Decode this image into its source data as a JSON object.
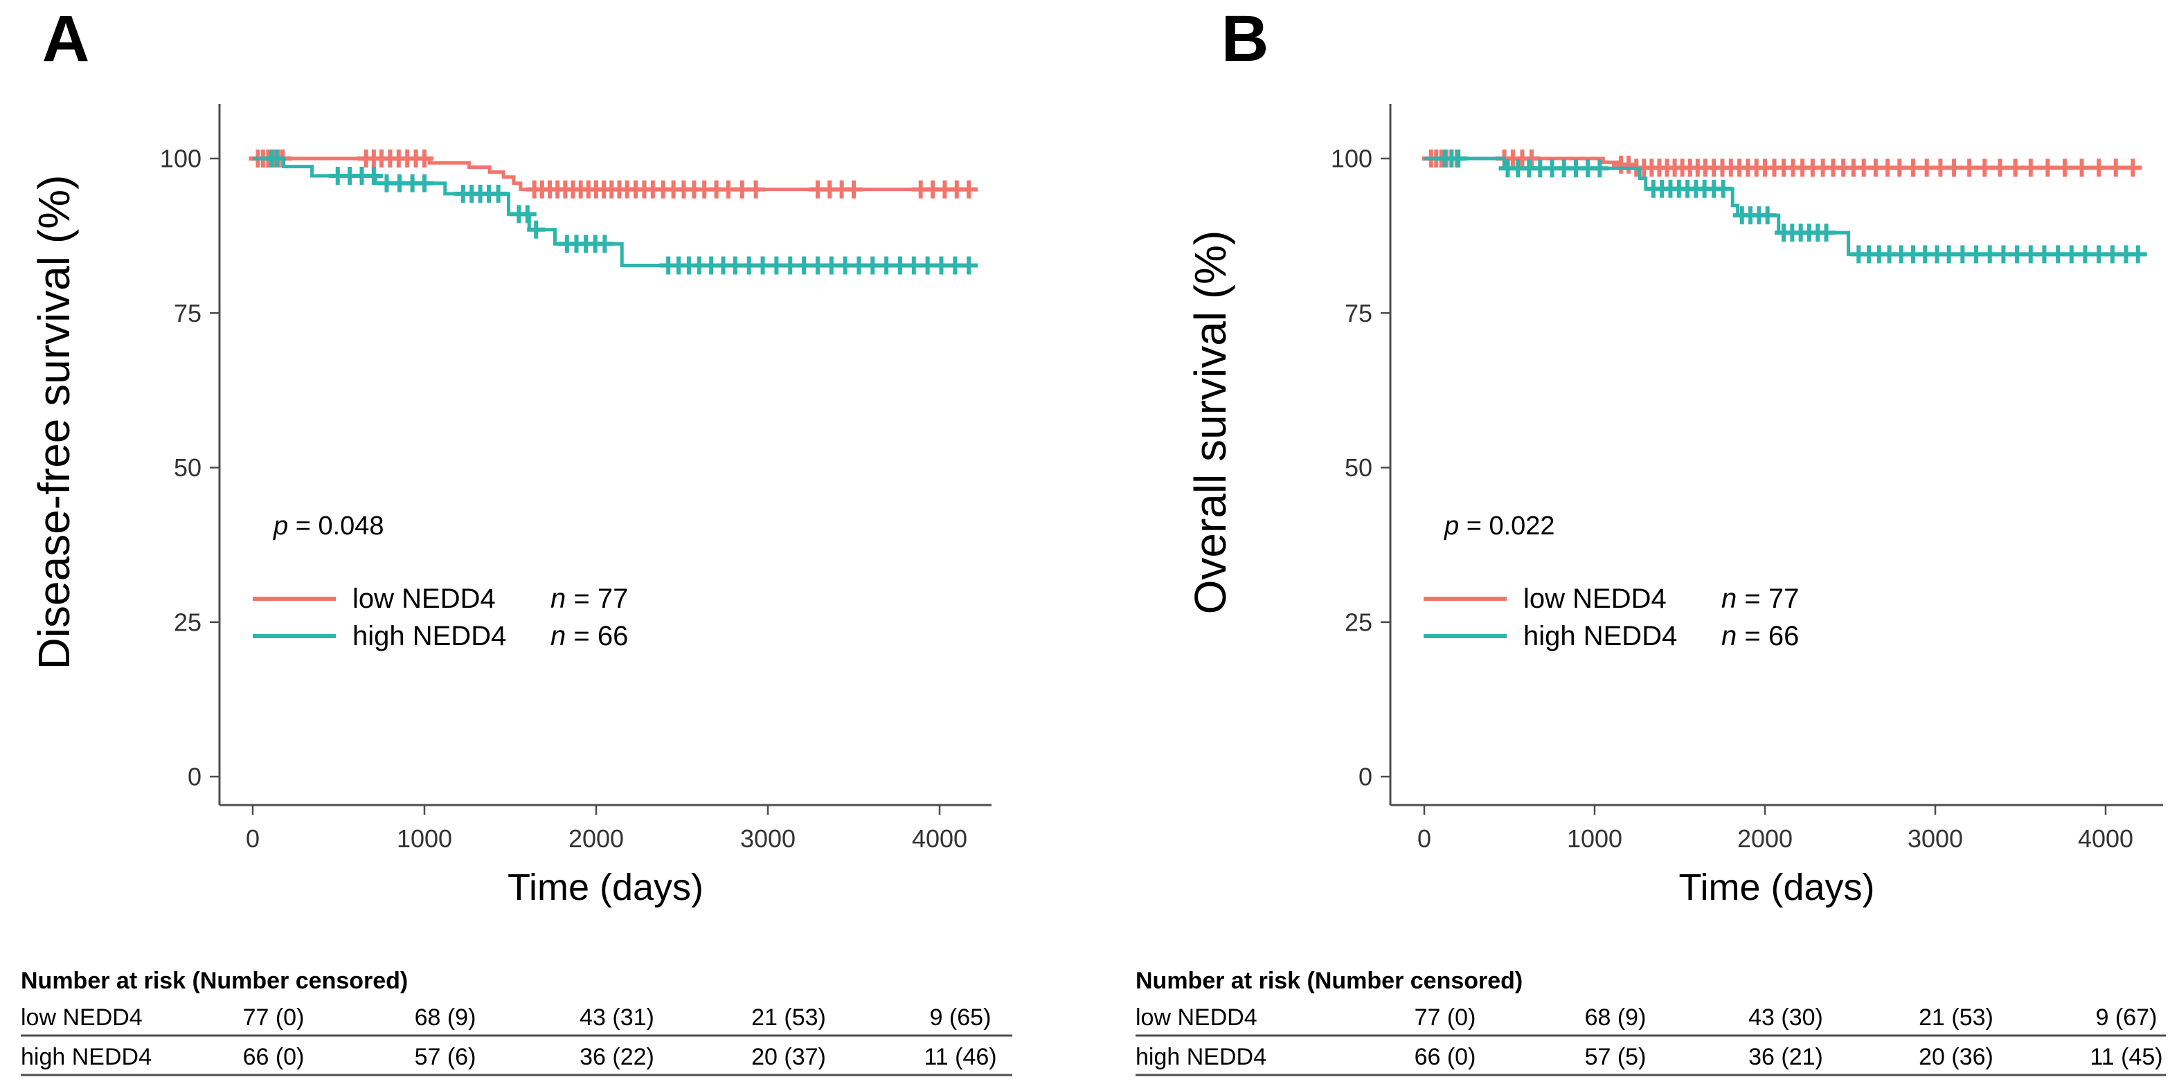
{
  "figure": {
    "background": "#ffffff",
    "text_color": "#000000",
    "axis_color": "#4d4d4d",
    "tick_text_color": "#333333",
    "table_rule_color": "#4d4d4d",
    "low_color": "#F2756C",
    "high_color": "#2BB5AC"
  },
  "chart_data": [
    {
      "type": "line",
      "subtype": "kaplan-meier-step",
      "panel_label": "A",
      "title": "",
      "xlabel": "Time (days)",
      "ylabel": "Disease-free survival (%)",
      "xlim": [
        0,
        4250
      ],
      "ylim": [
        0,
        108
      ],
      "xticks": [
        0,
        1000,
        2000,
        3000,
        4000
      ],
      "yticks": [
        0,
        25,
        50,
        75,
        100
      ],
      "grid": false,
      "legend_position": "inside-left-middle",
      "p_value_italic": "p",
      "p_value_rest": " = 0.048",
      "series": [
        {
          "key": "low",
          "name": "low NEDD4",
          "n_italic": "n",
          "n_rest": " = 77",
          "color": "#F2756C",
          "steps_day_percent": [
            [
              0,
              100
            ],
            [
              1030,
              99.3
            ],
            [
              1260,
              98.6
            ],
            [
              1380,
              97.8
            ],
            [
              1460,
              97.0
            ],
            [
              1520,
              96.0
            ],
            [
              1560,
              95.0
            ],
            [
              4200,
              95.0
            ]
          ],
          "censor_days": [
            30,
            60,
            90,
            120,
            150,
            175,
            660,
            705,
            750,
            800,
            850,
            900,
            950,
            1000,
            1640,
            1685,
            1730,
            1775,
            1820,
            1865,
            1910,
            1955,
            2000,
            2045,
            2090,
            2135,
            2180,
            2230,
            2280,
            2330,
            2390,
            2450,
            2510,
            2570,
            2630,
            2700,
            2770,
            2850,
            2930,
            3290,
            3360,
            3430,
            3500,
            3890,
            3960,
            4030,
            4100,
            4170
          ]
        },
        {
          "key": "high",
          "name": "high NEDD4",
          "n_italic": "n",
          "n_rest": " = 66",
          "color": "#2BB5AC",
          "steps_day_percent": [
            [
              0,
              100
            ],
            [
              180,
              98.7
            ],
            [
              345,
              97.2
            ],
            [
              715,
              96.0
            ],
            [
              1120,
              94.3
            ],
            [
              1490,
              91.0
            ],
            [
              1610,
              88.5
            ],
            [
              1760,
              86.2
            ],
            [
              2150,
              82.7
            ],
            [
              4200,
              82.7
            ]
          ],
          "censor_days": [
            110,
            140,
            495,
            565,
            635,
            705,
            780,
            855,
            930,
            1000,
            1225,
            1275,
            1325,
            1375,
            1430,
            1550,
            1600,
            1650,
            1830,
            1885,
            1940,
            1995,
            2050,
            2420,
            2480,
            2540,
            2600,
            2670,
            2740,
            2810,
            2890,
            2970,
            3050,
            3130,
            3210,
            3290,
            3370,
            3450,
            3530,
            3610,
            3690,
            3770,
            3850,
            3930,
            4010,
            4090,
            4170
          ]
        }
      ],
      "risk_table": {
        "header": "Number at risk (Number censored)",
        "rows": [
          {
            "label": "low NEDD4",
            "values": [
              "77 (0)",
              "68 (9)",
              "43 (31)",
              "21 (53)",
              "9 (65)"
            ]
          },
          {
            "label": "high NEDD4",
            "values": [
              "66 (0)",
              "57 (6)",
              "36 (22)",
              "20 (37)",
              "11 (46)"
            ]
          }
        ]
      }
    },
    {
      "type": "line",
      "subtype": "kaplan-meier-step",
      "panel_label": "B",
      "title": "",
      "xlabel": "Time (days)",
      "ylabel": "Overall survival (%)",
      "xlim": [
        0,
        4250
      ],
      "ylim": [
        0,
        108
      ],
      "xticks": [
        0,
        1000,
        2000,
        3000,
        4000
      ],
      "yticks": [
        0,
        25,
        50,
        75,
        100
      ],
      "grid": false,
      "legend_position": "inside-left-middle",
      "p_value_italic": "p",
      "p_value_rest": " = 0.022",
      "series": [
        {
          "key": "low",
          "name": "low NEDD4",
          "n_italic": "n",
          "n_rest": " = 77",
          "color": "#F2756C",
          "steps_day_percent": [
            [
              0,
              100
            ],
            [
              1050,
              99.4
            ],
            [
              1140,
              99.0
            ],
            [
              1230,
              98.5
            ],
            [
              4200,
              98.5
            ]
          ],
          "censor_days": [
            40,
            70,
            100,
            130,
            160,
            190,
            470,
            520,
            575,
            630,
            1155,
            1200,
            1245,
            1290,
            1335,
            1380,
            1425,
            1470,
            1515,
            1560,
            1605,
            1650,
            1700,
            1750,
            1800,
            1850,
            1900,
            1950,
            2000,
            2055,
            2110,
            2165,
            2220,
            2280,
            2340,
            2400,
            2460,
            2520,
            2580,
            2650,
            2720,
            2790,
            2870,
            2950,
            3030,
            3110,
            3200,
            3290,
            3380,
            3470,
            3560,
            3660,
            3760,
            3860,
            3960,
            4060,
            4160
          ]
        },
        {
          "key": "high",
          "name": "high NEDD4",
          "n_italic": "n",
          "n_rest": " = 66",
          "color": "#2BB5AC",
          "steps_day_percent": [
            [
              0,
              100
            ],
            [
              470,
              98.4
            ],
            [
              1265,
              96.8
            ],
            [
              1300,
              95.1
            ],
            [
              1810,
              92.4
            ],
            [
              1840,
              90.8
            ],
            [
              2080,
              88.0
            ],
            [
              2490,
              84.5
            ],
            [
              4200,
              84.5
            ]
          ],
          "censor_days": [
            120,
            160,
            200,
            490,
            550,
            615,
            680,
            750,
            820,
            890,
            960,
            1030,
            1345,
            1395,
            1445,
            1495,
            1545,
            1595,
            1645,
            1700,
            1755,
            1865,
            1915,
            1965,
            2015,
            2110,
            2160,
            2210,
            2260,
            2310,
            2360,
            2550,
            2610,
            2670,
            2730,
            2800,
            2870,
            2940,
            3010,
            3080,
            3160,
            3240,
            3320,
            3400,
            3480,
            3560,
            3640,
            3720,
            3800,
            3880,
            3960,
            4040,
            4120,
            4190
          ]
        }
      ],
      "risk_table": {
        "header": "Number at risk (Number censored)",
        "rows": [
          {
            "label": "low NEDD4",
            "values": [
              "77 (0)",
              "68 (9)",
              "43 (30)",
              "21 (53)",
              "9 (67)"
            ]
          },
          {
            "label": "high NEDD4",
            "values": [
              "66 (0)",
              "57 (5)",
              "36 (21)",
              "20 (36)",
              "11 (45)"
            ]
          }
        ]
      }
    }
  ]
}
